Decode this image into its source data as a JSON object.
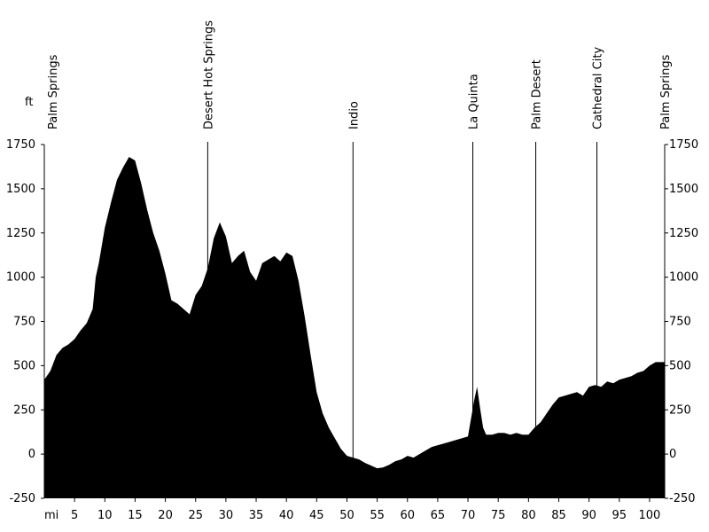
{
  "chart_data": {
    "type": "area",
    "title": "",
    "ylabel": "ft",
    "xlabel": "mi",
    "ylim": [
      -250,
      1750
    ],
    "xlim": [
      0,
      102.5
    ],
    "yticks": [
      1750,
      1500,
      1250,
      1000,
      750,
      500,
      250,
      0,
      -250
    ],
    "xticks": [
      5,
      10,
      15,
      20,
      25,
      30,
      35,
      40,
      45,
      50,
      55,
      60,
      65,
      70,
      75,
      80,
      85,
      90,
      95,
      100
    ],
    "grid": false,
    "fill_color": "#000000",
    "waypoints": [
      {
        "name": "Palm Springs",
        "mile": 0
      },
      {
        "name": "Desert Hot Springs",
        "mile": 27
      },
      {
        "name": "Indio",
        "mile": 51
      },
      {
        "name": "La Quinta",
        "mile": 70.8
      },
      {
        "name": "Palm Desert",
        "mile": 81.2
      },
      {
        "name": "Cathedral City",
        "mile": 91.3
      },
      {
        "name": "Palm Springs",
        "mile": 102.5
      }
    ],
    "series": [
      {
        "x": [
          0,
          1,
          2,
          3,
          4,
          5,
          6,
          7,
          8,
          8.5,
          9,
          10,
          11,
          12,
          13,
          14,
          15,
          16,
          17,
          18,
          19,
          20,
          21,
          22,
          23,
          24,
          25,
          26,
          27,
          28,
          29,
          30,
          31,
          32,
          33,
          34,
          35,
          36,
          37,
          38,
          39,
          40,
          41,
          42,
          43,
          44,
          45,
          46,
          47,
          48,
          49,
          50,
          51,
          52,
          53,
          54,
          55,
          56,
          57,
          58,
          59,
          60,
          61,
          62,
          63,
          64,
          65,
          66,
          67,
          68,
          69,
          70,
          71,
          71.5,
          72,
          72.5,
          73,
          74,
          75,
          76,
          77,
          78,
          79,
          80,
          81,
          82,
          83,
          84,
          85,
          86,
          87,
          88,
          89,
          90,
          91,
          92,
          93,
          94,
          95,
          96,
          97,
          98,
          99,
          100,
          101,
          102.5
        ],
        "y": [
          420,
          470,
          560,
          600,
          620,
          650,
          700,
          740,
          820,
          1000,
          1080,
          1280,
          1420,
          1550,
          1620,
          1680,
          1660,
          1530,
          1380,
          1250,
          1150,
          1020,
          870,
          850,
          820,
          790,
          900,
          950,
          1050,
          1220,
          1310,
          1230,
          1080,
          1120,
          1150,
          1030,
          980,
          1080,
          1100,
          1120,
          1090,
          1140,
          1120,
          980,
          780,
          560,
          350,
          230,
          150,
          90,
          30,
          -10,
          -20,
          -30,
          -50,
          -65,
          -80,
          -75,
          -60,
          -40,
          -30,
          -10,
          -20,
          0,
          20,
          40,
          50,
          60,
          70,
          80,
          90,
          100,
          300,
          380,
          260,
          150,
          110,
          110,
          120,
          120,
          110,
          120,
          110,
          110,
          150,
          180,
          230,
          280,
          320,
          330,
          340,
          350,
          330,
          380,
          390,
          380,
          410,
          400,
          420,
          430,
          440,
          460,
          470,
          500,
          520,
          520
        ]
      }
    ]
  }
}
